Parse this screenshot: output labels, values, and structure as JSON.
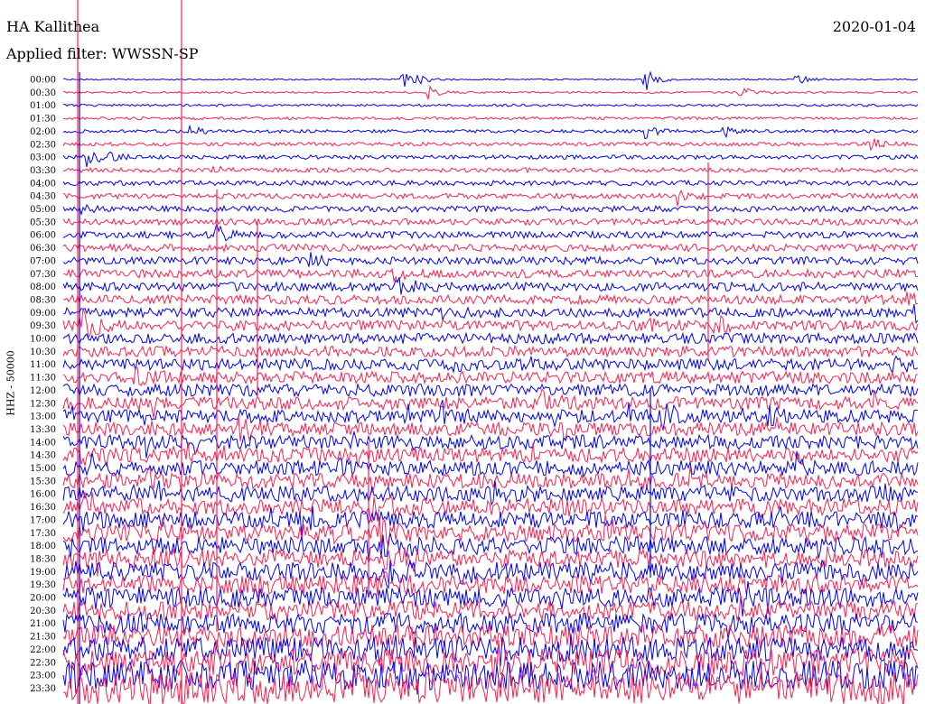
{
  "header": {
    "station": "HA Kallithea",
    "date": "2020-01-04",
    "filter": "Applied filter: WWSSN-SP"
  },
  "chart_data": {
    "type": "line",
    "ylabel": "HHZ - 50000",
    "row_labels": [
      "00:00",
      "00:30",
      "01:00",
      "01:30",
      "02:00",
      "02:30",
      "03:00",
      "03:30",
      "04:00",
      "04:30",
      "05:00",
      "05:30",
      "06:00",
      "06:30",
      "07:00",
      "07:30",
      "08:00",
      "08:30",
      "09:00",
      "09:30",
      "10:00",
      "10:30",
      "11:00",
      "11:30",
      "12:00",
      "12:30",
      "13:00",
      "13:30",
      "14:00",
      "14:30",
      "15:00",
      "15:30",
      "16:00",
      "16:30",
      "17:00",
      "17:30",
      "18:00",
      "18:30",
      "19:00",
      "19:30",
      "20:00",
      "20:30",
      "21:00",
      "21:30",
      "22:00",
      "22:30",
      "23:00",
      "23:30"
    ],
    "row_interval_minutes": 30,
    "colors": {
      "even": "#0000ff",
      "odd": "#ff1f4f"
    },
    "grid": false
  }
}
